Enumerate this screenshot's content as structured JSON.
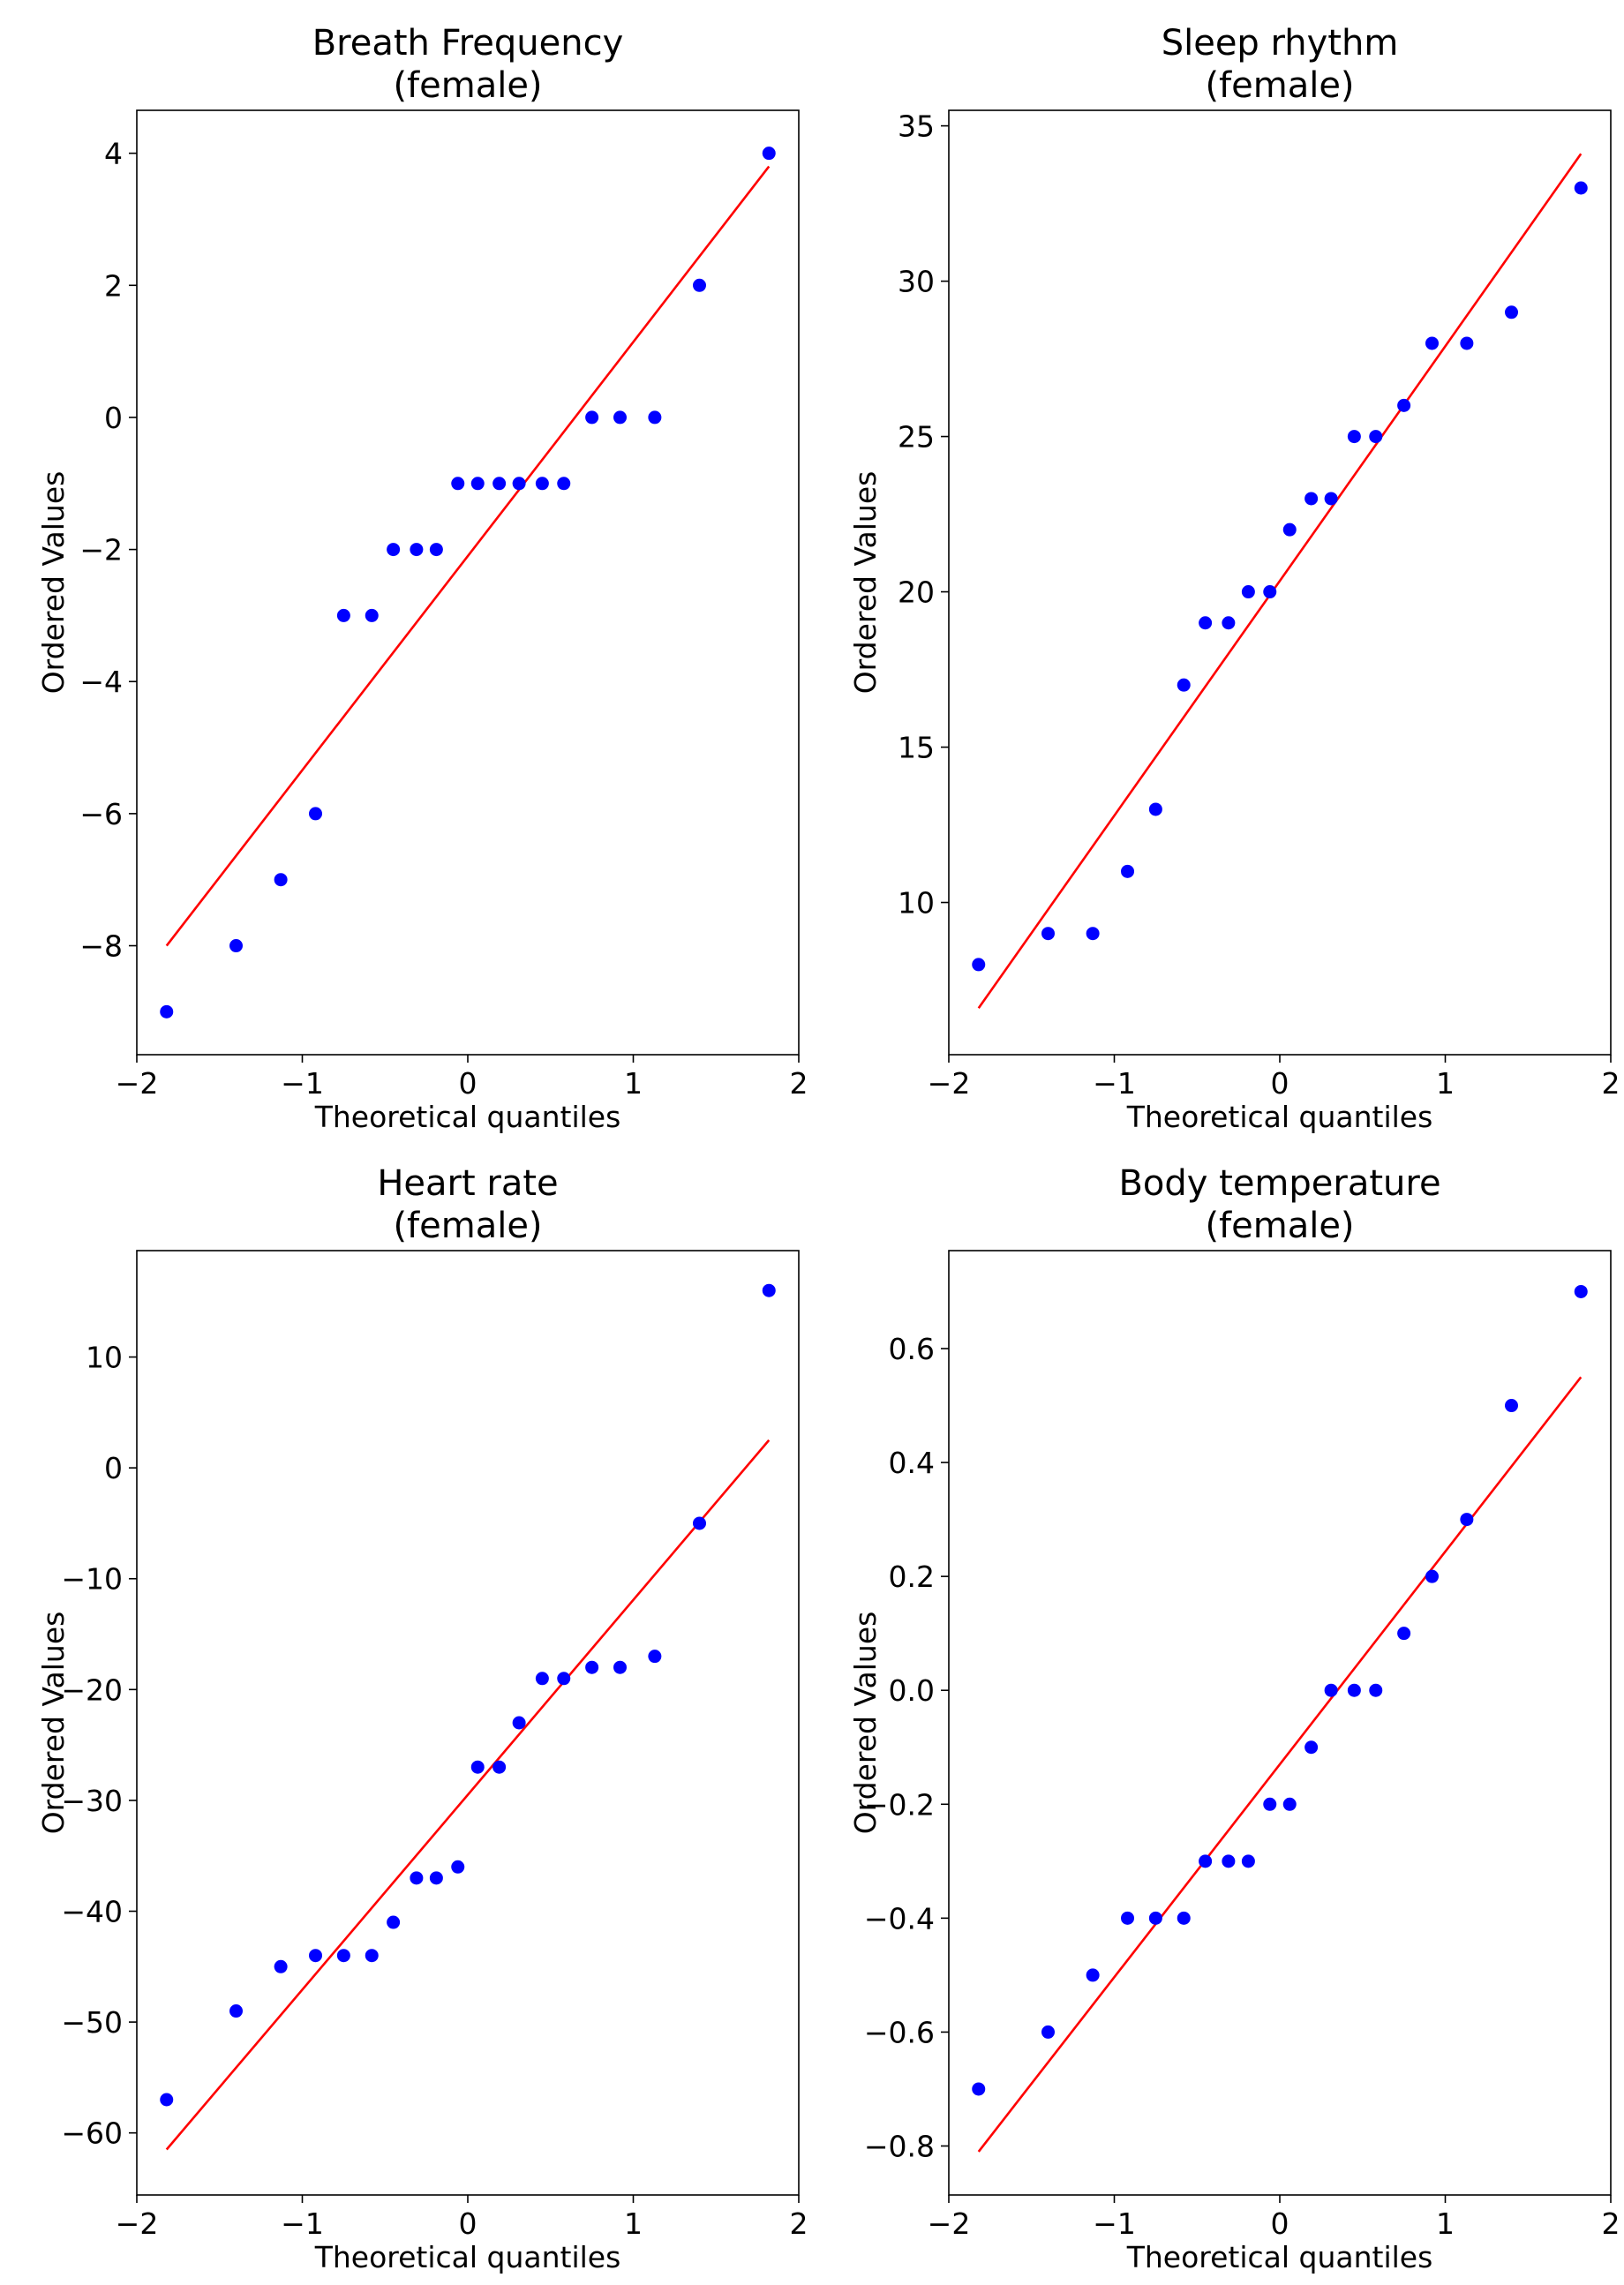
{
  "chart_data": [
    {
      "type": "scatter",
      "title": [
        "Breath Frequency",
        "(female)"
      ],
      "xlabel": "Theoretical quantiles",
      "ylabel": "Ordered Values",
      "xlim": [
        -2.0,
        2.0
      ],
      "ylim": [
        -9.65,
        4.65
      ],
      "xticks": [
        -2,
        -1,
        0,
        1,
        2
      ],
      "yticks": [
        -8,
        -6,
        -4,
        -2,
        0,
        2,
        4
      ],
      "ytick_labels": [
        "−8",
        "−6",
        "−4",
        "−2",
        "0",
        "2",
        "4"
      ],
      "xtick_labels": [
        "−2",
        "−1",
        "0",
        "1",
        "2"
      ],
      "point_color": "#0000ff",
      "line_color": "#ff0000",
      "x": [
        -1.82,
        -1.4,
        -1.13,
        -0.92,
        -0.75,
        -0.58,
        -0.45,
        -0.31,
        -0.19,
        -0.06,
        0.06,
        0.19,
        0.31,
        0.45,
        0.58,
        0.75,
        0.92,
        1.13,
        1.4,
        1.82
      ],
      "y": [
        -9,
        -8,
        -7,
        -6,
        -3,
        -3,
        -2,
        -2,
        -2,
        -1,
        -1,
        -1,
        -1,
        -1,
        -1,
        0,
        0,
        0,
        2,
        4
      ],
      "fit_line": {
        "x": [
          -1.82,
          1.82
        ],
        "y": [
          -8.0,
          3.8
        ]
      }
    },
    {
      "type": "scatter",
      "title": [
        "Sleep rhythm",
        "(female)"
      ],
      "xlabel": "Theoretical quantiles",
      "ylabel": "Ordered Values",
      "xlim": [
        -2.0,
        2.0
      ],
      "ylim": [
        5.1,
        35.5
      ],
      "xticks": [
        -2,
        -1,
        0,
        1,
        2
      ],
      "yticks": [
        10,
        15,
        20,
        25,
        30,
        35
      ],
      "ytick_labels": [
        "10",
        "15",
        "20",
        "25",
        "30",
        "35"
      ],
      "xtick_labels": [
        "−2",
        "−1",
        "0",
        "1",
        "2"
      ],
      "point_color": "#0000ff",
      "line_color": "#ff0000",
      "x": [
        -1.82,
        -1.4,
        -1.13,
        -0.92,
        -0.75,
        -0.58,
        -0.45,
        -0.31,
        -0.19,
        -0.06,
        0.06,
        0.19,
        0.31,
        0.45,
        0.58,
        0.75,
        0.92,
        1.13,
        1.4,
        1.82
      ],
      "y": [
        8,
        9,
        9,
        11,
        13,
        17,
        19,
        19,
        20,
        20,
        22,
        23,
        23,
        25,
        25,
        26,
        28,
        28,
        29,
        33
      ],
      "fit_line": {
        "x": [
          -1.82,
          1.82
        ],
        "y": [
          6.6,
          34.1
        ]
      }
    },
    {
      "type": "scatter",
      "title": [
        "Heart rate",
        "(female)"
      ],
      "xlabel": "Theoretical quantiles",
      "ylabel": "Ordered Values",
      "xlim": [
        -2.0,
        2.0
      ],
      "ylim": [
        -65.6,
        19.6
      ],
      "xticks": [
        -2,
        -1,
        0,
        1,
        2
      ],
      "yticks": [
        -60,
        -50,
        -40,
        -30,
        -20,
        -10,
        0,
        10
      ],
      "ytick_labels": [
        "−60",
        "−50",
        "−40",
        "−30",
        "−20",
        "−10",
        "0",
        "10"
      ],
      "xtick_labels": [
        "−2",
        "−1",
        "0",
        "1",
        "2"
      ],
      "point_color": "#0000ff",
      "line_color": "#ff0000",
      "x": [
        -1.82,
        -1.4,
        -1.13,
        -0.92,
        -0.75,
        -0.58,
        -0.45,
        -0.31,
        -0.19,
        -0.06,
        0.06,
        0.19,
        0.31,
        0.45,
        0.58,
        0.75,
        0.92,
        1.13,
        1.4,
        1.82
      ],
      "y": [
        -57,
        -49,
        -45,
        -44,
        -44,
        -44,
        -41,
        -37,
        -37,
        -36,
        -27,
        -27,
        -23,
        -19,
        -19,
        -18,
        -18,
        -17,
        -5,
        16
      ],
      "fit_line": {
        "x": [
          -1.82,
          1.82
        ],
        "y": [
          -61.5,
          2.5
        ]
      }
    },
    {
      "type": "scatter",
      "title": [
        "Body temperature",
        "(female)"
      ],
      "xlabel": "Theoretical quantiles",
      "ylabel": "Ordered Values",
      "xlim": [
        -2.0,
        2.0
      ],
      "ylim": [
        -0.886,
        0.772
      ],
      "xticks": [
        -2,
        -1,
        0,
        1,
        2
      ],
      "yticks": [
        -0.8,
        -0.6,
        -0.4,
        -0.2,
        0.0,
        0.2,
        0.4,
        0.6
      ],
      "ytick_labels": [
        "−0.8",
        "−0.6",
        "−0.4",
        "−0.2",
        "0.0",
        "0.2",
        "0.4",
        "0.6"
      ],
      "xtick_labels": [
        "−2",
        "−1",
        "0",
        "1",
        "2"
      ],
      "point_color": "#0000ff",
      "line_color": "#ff0000",
      "x": [
        -1.82,
        -1.4,
        -1.13,
        -0.92,
        -0.75,
        -0.58,
        -0.45,
        -0.31,
        -0.19,
        -0.06,
        0.06,
        0.19,
        0.31,
        0.45,
        0.58,
        0.75,
        0.92,
        1.13,
        1.4,
        1.82
      ],
      "y": [
        -0.7,
        -0.6,
        -0.5,
        -0.4,
        -0.4,
        -0.4,
        -0.3,
        -0.3,
        -0.3,
        -0.2,
        -0.2,
        -0.1,
        0.0,
        0.0,
        0.0,
        0.1,
        0.2,
        0.3,
        0.5,
        0.7
      ],
      "fit_line": {
        "x": [
          -1.82,
          1.82
        ],
        "y": [
          -0.81,
          0.55
        ]
      }
    }
  ]
}
